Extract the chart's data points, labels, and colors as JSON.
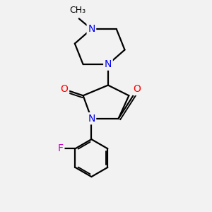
{
  "background_color": "#f2f2f2",
  "bond_color": "#000000",
  "bond_width": 1.6,
  "atom_colors": {
    "N": "#0000ee",
    "O": "#ff0000",
    "F": "#cc00cc",
    "C": "#000000"
  },
  "font_size_atom": 10,
  "font_size_methyl": 9
}
